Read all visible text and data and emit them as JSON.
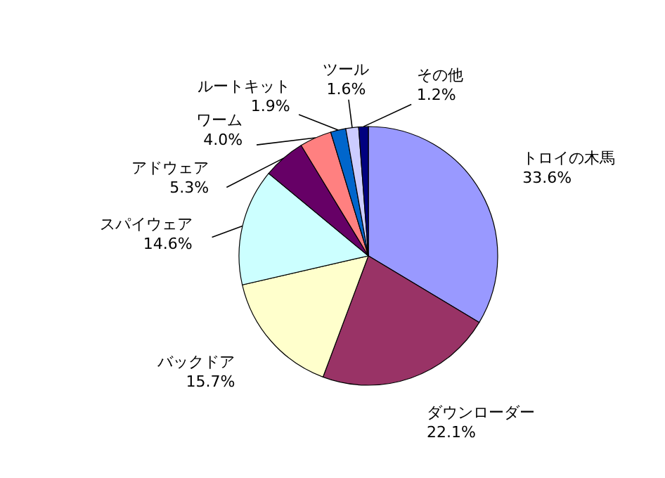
{
  "chart_data": {
    "type": "pie",
    "categories": [
      "トロイの木馬",
      "ダウンローダー",
      "バックドア",
      "スパイウェア",
      "アドウェア",
      "ワーム",
      "ルートキット",
      "ツール",
      "その他"
    ],
    "values": [
      33.6,
      22.1,
      15.7,
      14.6,
      5.3,
      4.0,
      1.9,
      1.6,
      1.2
    ],
    "value_labels": [
      "33.6%",
      "22.1%",
      "15.7%",
      "14.6%",
      "5.3%",
      "4.0%",
      "1.9%",
      "1.6%",
      "1.2%"
    ],
    "colors": [
      "#9999ff",
      "#993366",
      "#ffffcc",
      "#ccffff",
      "#660066",
      "#ff8080",
      "#0066cc",
      "#ccccff",
      "#000080"
    ]
  }
}
